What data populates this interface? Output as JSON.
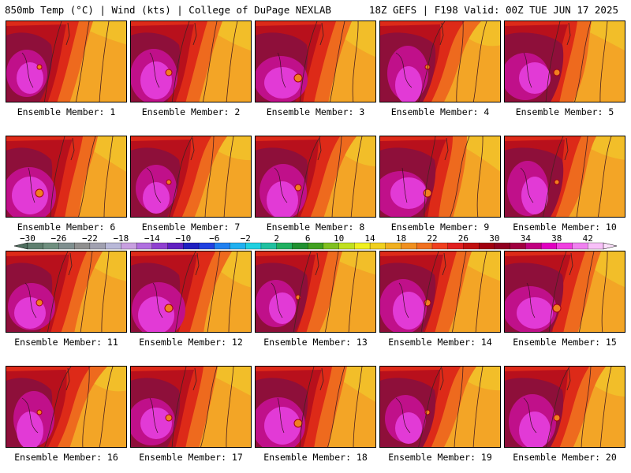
{
  "header": {
    "left": "850mb Temp (°C) | Wind (kts) | College of DuPage NEXLAB",
    "right": "18Z GEFS | F198 Valid: 00Z TUE JUN 17 2025"
  },
  "members": [
    {
      "label": "Ensemble Member: 1"
    },
    {
      "label": "Ensemble Member: 2"
    },
    {
      "label": "Ensemble Member: 3"
    },
    {
      "label": "Ensemble Member: 4"
    },
    {
      "label": "Ensemble Member: 5"
    },
    {
      "label": "Ensemble Member: 6"
    },
    {
      "label": "Ensemble Member: 7"
    },
    {
      "label": "Ensemble Member: 8"
    },
    {
      "label": "Ensemble Member: 9"
    },
    {
      "label": "Ensemble Member: 10"
    },
    {
      "label": "Ensemble Member: 11"
    },
    {
      "label": "Ensemble Member: 12"
    },
    {
      "label": "Ensemble Member: 13"
    },
    {
      "label": "Ensemble Member: 14"
    },
    {
      "label": "Ensemble Member: 15"
    },
    {
      "label": "Ensemble Member: 16"
    },
    {
      "label": "Ensemble Member: 17"
    },
    {
      "label": "Ensemble Member: 18"
    },
    {
      "label": "Ensemble Member: 19"
    },
    {
      "label": "Ensemble Member: 20"
    }
  ],
  "colorbar": {
    "tick_labels": [
      "−30",
      "−26",
      "−22",
      "−18",
      "−14",
      "−10",
      "−6",
      "−2",
      "2",
      "6",
      "10",
      "14",
      "18",
      "22",
      "26",
      "30",
      "34",
      "38",
      "42"
    ],
    "colors": [
      "#5f7f6f",
      "#6f8f7f",
      "#7f8f8f",
      "#8f8f8f",
      "#a0a0b0",
      "#b8b8d8",
      "#c8a0e0",
      "#b070e0",
      "#9040d0",
      "#6020c0",
      "#2020c0",
      "#2040e0",
      "#2080f0",
      "#20b0f0",
      "#20d0e0",
      "#20c0a0",
      "#20b060",
      "#209030",
      "#40a020",
      "#80c020",
      "#c0e020",
      "#f0f020",
      "#f0d020",
      "#f0b020",
      "#f09020",
      "#f07020",
      "#f04020",
      "#e02020",
      "#c01010",
      "#a00010",
      "#900020",
      "#a00040",
      "#c00080",
      "#e000c0",
      "#f040e0",
      "#f080f0",
      "#f8c0f8"
    ]
  }
}
